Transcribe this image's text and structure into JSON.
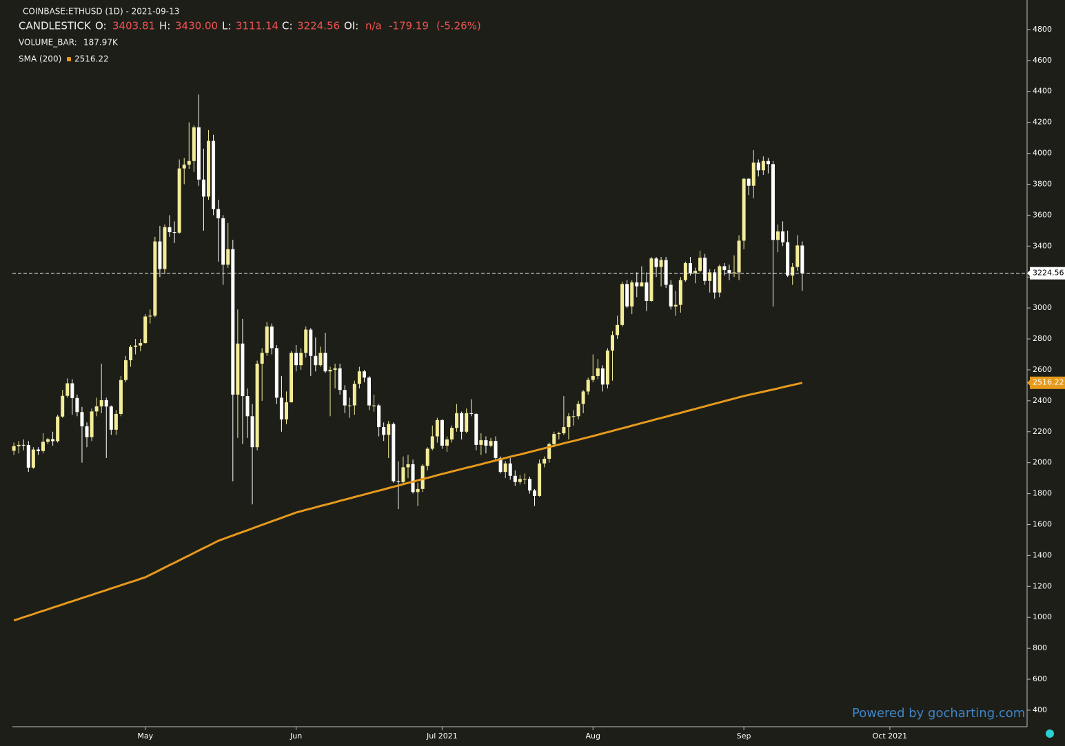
{
  "chart_data": {
    "type": "candlestick",
    "header": {
      "symbol": "COINBASE:ETHUSD (1D) - 2021-09-13",
      "series_name": "CANDLESTICK",
      "o_label": "O:",
      "o": "3403.81",
      "h_label": "H:",
      "h": "3430.00",
      "l_label": "L:",
      "l": "3111.14",
      "c_label": "C:",
      "c": "3224.56",
      "oi_label": "OI:",
      "oi": "n/a",
      "change": "-179.19",
      "change_pct": "(-5.26%)",
      "volume_label": "VOLUME_BAR:",
      "volume": "187.97K",
      "sma_label": "SMA (200)"
    },
    "watermark": "Powered by gocharting.com",
    "up_color": "#f3ec98",
    "down_color": "#ffffff",
    "open": [
      2077,
      2107,
      2115,
      2114,
      1968,
      2085,
      2075,
      2135,
      2152,
      2139,
      2298,
      2432,
      2513,
      2418,
      2327,
      2235,
      2165,
      2331,
      2364,
      2404,
      2363,
      2213,
      2315,
      2534,
      2662,
      2748,
      2757,
      2773,
      2945,
      2950,
      3430,
      3252,
      3522,
      3490,
      3487,
      3902,
      3927,
      3950,
      4168,
      3830,
      3720,
      4080,
      3640,
      3580,
      3280,
      3380,
      2440,
      2770,
      2430,
      2300,
      2100,
      2640,
      2710,
      2880,
      2740,
      2420,
      2280,
      2390,
      2710,
      2630,
      2710,
      2860,
      2690,
      2630,
      2710,
      2590,
      2600,
      2610,
      2470,
      2370,
      2370,
      2510,
      2590,
      2550,
      2370,
      2370,
      2230,
      2180,
      2250,
      1880,
      1875,
      1970,
      1990,
      1810,
      1830,
      1980,
      2090,
      2170,
      2275,
      2110,
      2150,
      2225,
      2320,
      2200,
      2320,
      2315,
      2115,
      2145,
      2110,
      2140,
      2030,
      1940,
      1995,
      1915,
      1875,
      1895,
      1895,
      1820,
      1785,
      1995,
      2025,
      2120,
      2185,
      2190,
      2230,
      2300,
      2300,
      2380,
      2460,
      2535,
      2560,
      2610,
      2505,
      2725,
      2825,
      2890,
      3155,
      3010,
      3165,
      3140,
      3165,
      3045,
      3320,
      3265,
      3310,
      3150,
      3010,
      3020,
      3180,
      3290,
      3225,
      3240,
      3325,
      3175,
      3230,
      3100,
      3270,
      3245,
      3225,
      3230,
      3435,
      3835,
      3790,
      3940,
      3890,
      3950,
      3930,
      3440,
      3495,
      3425,
      3210,
      3265,
      3403.81
    ],
    "high": [
      2130,
      2140,
      2150,
      2140,
      2100,
      2100,
      2190,
      2160,
      2200,
      2310,
      2470,
      2545,
      2540,
      2440,
      2360,
      2260,
      2350,
      2420,
      2640,
      2420,
      2370,
      2340,
      2560,
      2690,
      2760,
      2800,
      2800,
      2960,
      2990,
      3460,
      3530,
      3540,
      3600,
      3560,
      3960,
      3970,
      4200,
      4180,
      4380,
      4030,
      4150,
      4120,
      3700,
      3600,
      3550,
      3440,
      2990,
      2930,
      2480,
      2380,
      2660,
      2740,
      2910,
      2900,
      2760,
      2560,
      2460,
      2720,
      2760,
      2740,
      2880,
      2870,
      2810,
      2750,
      2840,
      2620,
      2640,
      2640,
      2500,
      2420,
      2530,
      2620,
      2600,
      2560,
      2440,
      2380,
      2260,
      2270,
      2260,
      2010,
      2040,
      2050,
      2020,
      1870,
      1990,
      2100,
      2240,
      2290,
      2280,
      2170,
      2240,
      2380,
      2330,
      2350,
      2410,
      2320,
      2190,
      2170,
      2160,
      2170,
      2040,
      2010,
      2030,
      1950,
      1920,
      1930,
      1910,
      1830,
      2020,
      2040,
      2130,
      2200,
      2200,
      2430,
      2320,
      2340,
      2400,
      2470,
      2550,
      2700,
      2670,
      2630,
      2740,
      2850,
      2950,
      3170,
      3180,
      3180,
      3230,
      3270,
      3230,
      3330,
      3330,
      3330,
      3330,
      3180,
      3110,
      3200,
      3300,
      3330,
      3260,
      3370,
      3350,
      3250,
      3250,
      3280,
      3290,
      3280,
      3340,
      3470,
      3840,
      3840,
      4020,
      3960,
      3980,
      3970,
      3950,
      3540,
      3560,
      3500,
      3290,
      3470,
      3430
    ],
    "low": [
      2050,
      2060,
      2080,
      1940,
      1960,
      2050,
      2060,
      2120,
      2110,
      2130,
      2290,
      2420,
      2310,
      2300,
      2000,
      2100,
      2140,
      2300,
      2320,
      2030,
      2180,
      2180,
      2300,
      2520,
      2620,
      2700,
      2720,
      2770,
      2900,
      2940,
      3200,
      3220,
      3460,
      3420,
      3480,
      3800,
      3900,
      3880,
      3790,
      3500,
      3700,
      3600,
      3300,
      3150,
      3260,
      1880,
      2160,
      2120,
      2160,
      1730,
      2080,
      2400,
      2690,
      2700,
      2380,
      2200,
      2250,
      2390,
      2590,
      2600,
      2680,
      2560,
      2590,
      2620,
      2580,
      2300,
      2480,
      2440,
      2320,
      2290,
      2310,
      2480,
      2520,
      2340,
      2330,
      2170,
      2140,
      2030,
      1870,
      1700,
      1860,
      1900,
      1800,
      1720,
      1810,
      1950,
      2080,
      2130,
      2090,
      2070,
      2130,
      2200,
      2150,
      2190,
      2300,
      2080,
      2050,
      2060,
      2100,
      2010,
      1930,
      1900,
      1890,
      1850,
      1860,
      1860,
      1800,
      1720,
      1780,
      1970,
      2000,
      2100,
      2150,
      2180,
      2150,
      2240,
      2280,
      2320,
      2440,
      2520,
      2540,
      2460,
      2480,
      2530,
      2800,
      2880,
      3000,
      2960,
      3070,
      3140,
      2980,
      3040,
      3200,
      3140,
      3130,
      2990,
      2950,
      2970,
      3170,
      3210,
      3160,
      3230,
      3150,
      3100,
      3060,
      3070,
      3210,
      3180,
      3200,
      3180,
      3380,
      3730,
      3710,
      3850,
      3860,
      3870,
      3010,
      3360,
      3400,
      3200,
      3150,
      3240,
      3111.14
    ],
    "close": [
      2107,
      2115,
      2114,
      1968,
      2085,
      2075,
      2135,
      2152,
      2139,
      2298,
      2432,
      2513,
      2418,
      2327,
      2235,
      2165,
      2331,
      2364,
      2404,
      2363,
      2213,
      2315,
      2534,
      2662,
      2748,
      2757,
      2773,
      2945,
      2950,
      3430,
      3252,
      3522,
      3490,
      3487,
      3902,
      3927,
      3950,
      4168,
      3830,
      3720,
      4080,
      3640,
      3580,
      3280,
      3380,
      2440,
      2770,
      2430,
      2300,
      2100,
      2640,
      2710,
      2880,
      2740,
      2420,
      2280,
      2390,
      2710,
      2630,
      2710,
      2860,
      2690,
      2630,
      2710,
      2590,
      2600,
      2610,
      2470,
      2370,
      2370,
      2510,
      2590,
      2550,
      2370,
      2370,
      2230,
      2180,
      2250,
      1880,
      1875,
      1970,
      1990,
      1810,
      1830,
      1980,
      2090,
      2170,
      2275,
      2110,
      2150,
      2225,
      2320,
      2200,
      2320,
      2315,
      2115,
      2145,
      2110,
      2140,
      2030,
      1940,
      1995,
      1915,
      1875,
      1895,
      1895,
      1820,
      1785,
      1995,
      2025,
      2120,
      2185,
      2190,
      2230,
      2300,
      2300,
      2380,
      2460,
      2535,
      2560,
      2610,
      2505,
      2725,
      2825,
      2890,
      3155,
      3010,
      3165,
      3140,
      3165,
      3045,
      3320,
      3265,
      3310,
      3150,
      3010,
      3020,
      3180,
      3290,
      3225,
      3240,
      3325,
      3175,
      3230,
      3100,
      3270,
      3245,
      3225,
      3230,
      3435,
      3835,
      3790,
      3940,
      3890,
      3950,
      3930,
      3440,
      3495,
      3425,
      3210,
      3265,
      3404,
      3224.56
    ],
    "sma": {
      "color": "#e59a1c",
      "values": [
        980,
        990,
        1001,
        1011,
        1021,
        1032,
        1042,
        1052,
        1063,
        1073,
        1083,
        1094,
        1104,
        1114,
        1125,
        1135,
        1145,
        1156,
        1166,
        1176,
        1187,
        1197,
        1207,
        1218,
        1228,
        1238,
        1249,
        1259,
        1275,
        1290,
        1306,
        1322,
        1338,
        1353,
        1369,
        1385,
        1400,
        1416,
        1432,
        1448,
        1463,
        1479,
        1495,
        1506,
        1518,
        1529,
        1541,
        1552,
        1563,
        1575,
        1586,
        1598,
        1609,
        1621,
        1632,
        1643,
        1655,
        1666,
        1678,
        1686,
        1695,
        1703,
        1711,
        1720,
        1728,
        1736,
        1744,
        1753,
        1761,
        1769,
        1778,
        1786,
        1794,
        1803,
        1811,
        1819,
        1827,
        1836,
        1844,
        1852,
        1861,
        1869,
        1877,
        1886,
        1894,
        1902,
        1910,
        1919,
        1927,
        1935,
        1943,
        1951,
        1959,
        1967,
        1974,
        1982,
        1990,
        1998,
        2006,
        2014,
        2022,
        2030,
        2038,
        2046,
        2053,
        2061,
        2069,
        2077,
        2085,
        2093,
        2101,
        2109,
        2117,
        2125,
        2133,
        2140,
        2148,
        2156,
        2164,
        2172,
        2180,
        2189,
        2197,
        2205,
        2214,
        2222,
        2230,
        2239,
        2247,
        2256,
        2264,
        2272,
        2281,
        2289,
        2297,
        2306,
        2314,
        2322,
        2331,
        2339,
        2347,
        2356,
        2364,
        2373,
        2381,
        2389,
        2398,
        2406,
        2414,
        2423,
        2431,
        2438,
        2445,
        2452,
        2459,
        2466,
        2473,
        2480,
        2488,
        2495,
        2502,
        2509,
        2516.22
      ]
    },
    "xlim": [
      -0.3,
      208.2
    ],
    "xticks": [
      {
        "value": 27,
        "label": "May"
      },
      {
        "value": 58,
        "label": "Jun"
      },
      {
        "value": 88,
        "label": "Jul 2021"
      },
      {
        "value": 119,
        "label": "Aug"
      },
      {
        "value": 150,
        "label": "Sep"
      },
      {
        "value": 180,
        "label": "Oct 2021"
      }
    ],
    "ylim": [
      293,
      4991
    ],
    "yticks": [
      400,
      600,
      800,
      1000,
      1200,
      1400,
      1600,
      1800,
      2000,
      2200,
      2400,
      2600,
      2800,
      3000,
      3200,
      3400,
      3600,
      3800,
      4000,
      4200,
      4400,
      4600,
      4800
    ]
  }
}
